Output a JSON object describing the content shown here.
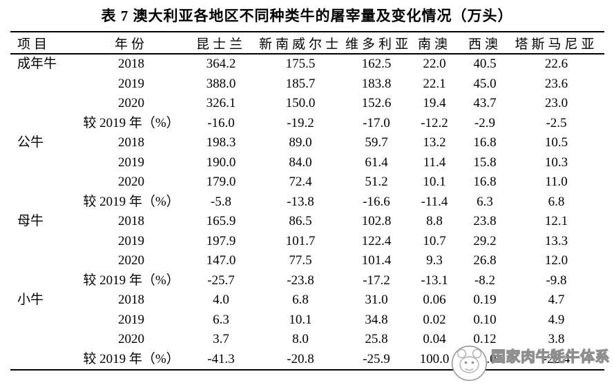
{
  "title": "表 7 澳大利亚各地区不同种类牛的屠宰量及变化情况（万头）",
  "table": {
    "columns": [
      "项目",
      "年份",
      "昆士兰",
      "新南威尔士",
      "维多利亚",
      "南澳",
      "西澳",
      "塔斯马尼亚"
    ],
    "groups": [
      {
        "item": "成年牛",
        "rows": [
          {
            "year": "2018",
            "values": [
              "364.2",
              "175.5",
              "162.5",
              "22.0",
              "40.5",
              "22.6"
            ]
          },
          {
            "year": "2019",
            "values": [
              "388.0",
              "185.7",
              "183.8",
              "22.1",
              "45.0",
              "23.6"
            ]
          },
          {
            "year": "2020",
            "values": [
              "326.1",
              "150.0",
              "152.6",
              "19.4",
              "43.7",
              "23.0"
            ]
          },
          {
            "year": "较 2019 年（%）",
            "values": [
              "-16.0",
              "-19.2",
              "-17.0",
              "-12.2",
              "-2.9",
              "-2.5"
            ]
          }
        ]
      },
      {
        "item": "公牛",
        "rows": [
          {
            "year": "2018",
            "values": [
              "198.3",
              "89.0",
              "59.7",
              "13.2",
              "16.8",
              "10.5"
            ]
          },
          {
            "year": "2019",
            "values": [
              "190.0",
              "84.0",
              "61.4",
              "11.4",
              "15.8",
              "10.3"
            ]
          },
          {
            "year": "2020",
            "values": [
              "179.0",
              "72.4",
              "51.2",
              "10.1",
              "16.8",
              "11.0"
            ]
          },
          {
            "year": "较 2019 年（%）",
            "values": [
              "-5.8",
              "-13.8",
              "-16.6",
              "-11.4",
              "6.3",
              "6.8"
            ]
          }
        ]
      },
      {
        "item": "母牛",
        "rows": [
          {
            "year": "2018",
            "values": [
              "165.9",
              "86.5",
              "102.8",
              "8.8",
              "23.8",
              "12.1"
            ]
          },
          {
            "year": "2019",
            "values": [
              "197.9",
              "101.7",
              "122.4",
              "10.7",
              "29.2",
              "13.3"
            ]
          },
          {
            "year": "2020",
            "values": [
              "147.0",
              "77.5",
              "101.4",
              "9.3",
              "26.8",
              "12.0"
            ]
          },
          {
            "year": "较 2019 年（%）",
            "values": [
              "-25.7",
              "-23.8",
              "-17.2",
              "-13.1",
              "-8.2",
              "-9.8"
            ]
          }
        ]
      },
      {
        "item": "小牛",
        "rows": [
          {
            "year": "2018",
            "values": [
              "4.0",
              "6.8",
              "31.0",
              "0.06",
              "0.19",
              "4.7"
            ]
          },
          {
            "year": "2019",
            "values": [
              "6.3",
              "10.1",
              "34.8",
              "0.02",
              "0.10",
              "4.9"
            ]
          },
          {
            "year": "2020",
            "values": [
              "3.7",
              "8.0",
              "25.8",
              "0.04",
              "0.12",
              "3.8"
            ]
          },
          {
            "year": "较 2019 年（%）",
            "values": [
              "-41.3",
              "-20.8",
              "-25.9",
              "100.0",
              "20.0",
              "-22.4"
            ]
          }
        ]
      }
    ]
  },
  "watermark": {
    "text": "国家肉牛牦牛体系",
    "color": "#8f8f8f"
  }
}
